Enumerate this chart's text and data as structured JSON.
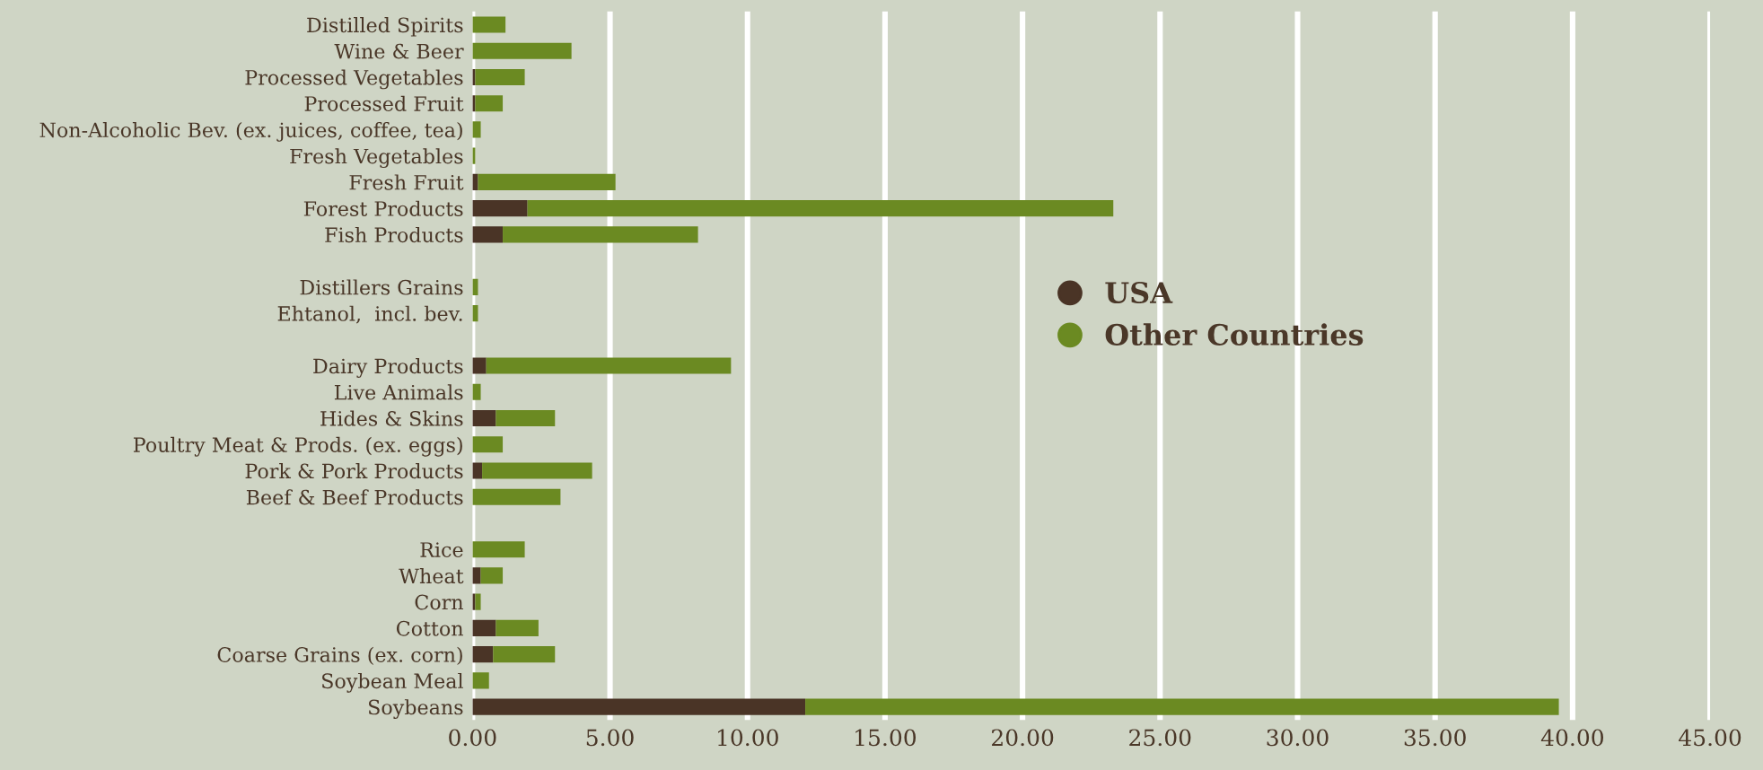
{
  "chart_data": {
    "type": "bar",
    "orientation": "horizontal",
    "stacked": true,
    "categories": [
      "Distilled Spirits",
      "Wine & Beer",
      "Processed Vegetables",
      "Processed Fruit",
      "Non-Alcoholic Bev. (ex. juices, coffee, tea)",
      "Fresh Vegetables",
      "Fresh Fruit",
      "Forest Products",
      "Fish Products",
      null,
      "Distillers Grains",
      "Ehtanol,  incl. bev.",
      null,
      "Dairy Products",
      "Live Animals",
      "Hides & Skins",
      "Poultry Meat & Prods. (ex. eggs)",
      "Pork & Pork Products",
      "Beef & Beef Products",
      null,
      "Rice",
      "Wheat",
      "Corn",
      "Cotton",
      "Coarse Grains (ex. corn)",
      "Soybean Meal",
      "Soybeans"
    ],
    "series": [
      {
        "name": "USA",
        "color": "#4a3426",
        "values": [
          0,
          0,
          0.1,
          0.1,
          0,
          0,
          0.2,
          2.0,
          1.1,
          null,
          0,
          0,
          null,
          0.5,
          0,
          0.85,
          0,
          0.35,
          0,
          null,
          0,
          0.3,
          0.1,
          0.85,
          0.75,
          0,
          12.1
        ]
      },
      {
        "name": "Other Countries",
        "color": "#6b8a22",
        "values": [
          1.2,
          3.6,
          1.8,
          1.0,
          0.3,
          0.1,
          5.0,
          21.3,
          7.1,
          null,
          0.2,
          0.2,
          null,
          8.9,
          0.3,
          2.15,
          1.1,
          4.0,
          3.2,
          null,
          1.9,
          0.8,
          0.2,
          1.55,
          2.25,
          0.6,
          27.4
        ]
      }
    ],
    "xlim": [
      0,
      45
    ],
    "xticks": [
      {
        "value": 0,
        "label": "0.00"
      },
      {
        "value": 5,
        "label": "5.00"
      },
      {
        "value": 10,
        "label": "10.00"
      },
      {
        "value": 15,
        "label": "15.00"
      },
      {
        "value": 20,
        "label": "20.00"
      },
      {
        "value": 25,
        "label": "25.00"
      },
      {
        "value": 30,
        "label": "30.00"
      },
      {
        "value": 35,
        "label": "35.00"
      },
      {
        "value": 40,
        "label": "40.00"
      },
      {
        "value": 45,
        "label": "45.00"
      }
    ],
    "grid": "x",
    "legend": "center"
  }
}
